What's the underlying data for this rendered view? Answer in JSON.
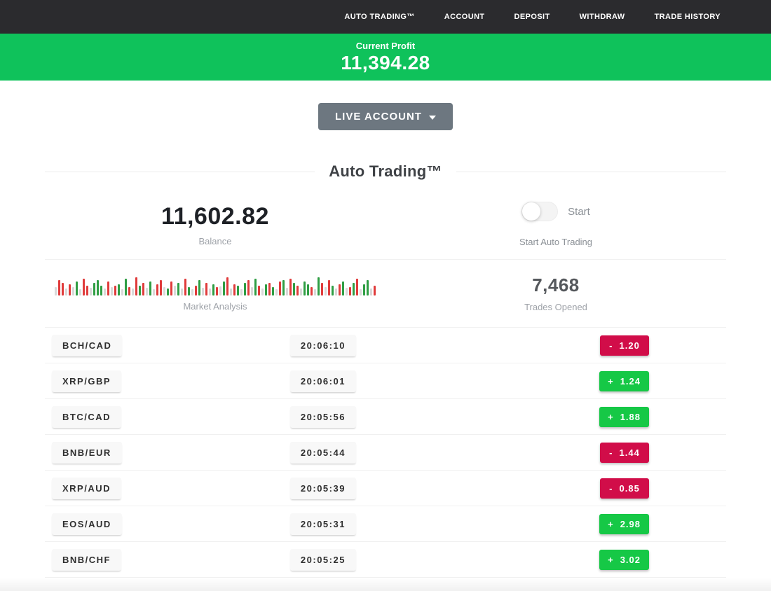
{
  "nav": {
    "items": [
      {
        "label": "AUTO TRADING™"
      },
      {
        "label": "ACCOUNT"
      },
      {
        "label": "DEPOSIT"
      },
      {
        "label": "WITHDRAW"
      },
      {
        "label": "TRADE HISTORY"
      }
    ]
  },
  "profit_banner": {
    "label": "Current Profit",
    "value": "11,394.28",
    "background_color": "#0fc25b"
  },
  "account_selector": {
    "label": "LIVE ACCOUNT",
    "icon": "caret-down-icon",
    "background_color": "#6d7780"
  },
  "section": {
    "title": "Auto Trading™"
  },
  "stats": {
    "balance": {
      "value": "11,602.82",
      "label": "Balance"
    },
    "auto_trading": {
      "toggle_state": "off",
      "toggle_label": "Start",
      "caption": "Start Auto Trading"
    },
    "market_analysis": {
      "label": "Market Analysis",
      "bar_colors": {
        "r": "#e03b3b",
        "g": "#2f9e44",
        "n": "#d9d9d9"
      },
      "bars": [
        [
          "n",
          12
        ],
        [
          "r",
          22
        ],
        [
          "r",
          18
        ],
        [
          "n",
          10
        ],
        [
          "r",
          16
        ],
        [
          "n",
          12
        ],
        [
          "g",
          20
        ],
        [
          "n",
          9
        ],
        [
          "r",
          24
        ],
        [
          "r",
          14
        ],
        [
          "n",
          11
        ],
        [
          "g",
          18
        ],
        [
          "g",
          22
        ],
        [
          "g",
          14
        ],
        [
          "n",
          10
        ],
        [
          "r",
          20
        ],
        [
          "n",
          12
        ],
        [
          "r",
          14
        ],
        [
          "g",
          16
        ],
        [
          "n",
          9
        ],
        [
          "g",
          24
        ],
        [
          "r",
          12
        ],
        [
          "n",
          10
        ],
        [
          "r",
          26
        ],
        [
          "g",
          14
        ],
        [
          "r",
          18
        ],
        [
          "n",
          11
        ],
        [
          "g",
          20
        ],
        [
          "n",
          9
        ],
        [
          "r",
          16
        ],
        [
          "r",
          22
        ],
        [
          "n",
          12
        ],
        [
          "g",
          10
        ],
        [
          "r",
          20
        ],
        [
          "n",
          14
        ],
        [
          "g",
          18
        ],
        [
          "n",
          10
        ],
        [
          "r",
          24
        ],
        [
          "g",
          12
        ],
        [
          "n",
          9
        ],
        [
          "r",
          14
        ],
        [
          "g",
          22
        ],
        [
          "n",
          11
        ],
        [
          "r",
          18
        ],
        [
          "n",
          10
        ],
        [
          "g",
          16
        ],
        [
          "r",
          12
        ],
        [
          "n",
          13
        ],
        [
          "g",
          20
        ],
        [
          "r",
          26
        ],
        [
          "n",
          10
        ],
        [
          "r",
          16
        ],
        [
          "g",
          14
        ],
        [
          "n",
          9
        ],
        [
          "g",
          18
        ],
        [
          "r",
          22
        ],
        [
          "n",
          12
        ],
        [
          "g",
          24
        ],
        [
          "r",
          14
        ],
        [
          "n",
          10
        ],
        [
          "g",
          16
        ],
        [
          "r",
          18
        ],
        [
          "g",
          12
        ],
        [
          "n",
          9
        ],
        [
          "r",
          20
        ],
        [
          "g",
          22
        ],
        [
          "n",
          11
        ],
        [
          "r",
          24
        ],
        [
          "g",
          18
        ],
        [
          "r",
          14
        ],
        [
          "n",
          10
        ],
        [
          "g",
          20
        ],
        [
          "g",
          16
        ],
        [
          "r",
          12
        ],
        [
          "n",
          9
        ],
        [
          "g",
          26
        ],
        [
          "r",
          18
        ],
        [
          "n",
          12
        ],
        [
          "r",
          22
        ],
        [
          "g",
          14
        ],
        [
          "n",
          10
        ],
        [
          "r",
          16
        ],
        [
          "g",
          20
        ],
        [
          "n",
          11
        ],
        [
          "r",
          12
        ],
        [
          "g",
          18
        ],
        [
          "r",
          24
        ],
        [
          "n",
          9
        ],
        [
          "g",
          16
        ],
        [
          "g",
          22
        ],
        [
          "n",
          10
        ],
        [
          "r",
          14
        ]
      ]
    },
    "trades_opened": {
      "value": "7,468",
      "label": "Trades Opened"
    }
  },
  "trades": {
    "rows": [
      {
        "pair": "BCH/CAD",
        "time": "20:06:10",
        "sign": "-",
        "value": "1.20",
        "direction": "loss"
      },
      {
        "pair": "XRP/GBP",
        "time": "20:06:01",
        "sign": "+",
        "value": "1.24",
        "direction": "gain"
      },
      {
        "pair": "BTC/CAD",
        "time": "20:05:56",
        "sign": "+",
        "value": "1.88",
        "direction": "gain"
      },
      {
        "pair": "BNB/EUR",
        "time": "20:05:44",
        "sign": "-",
        "value": "1.44",
        "direction": "loss"
      },
      {
        "pair": "XRP/AUD",
        "time": "20:05:39",
        "sign": "-",
        "value": "0.85",
        "direction": "loss"
      },
      {
        "pair": "EOS/AUD",
        "time": "20:05:31",
        "sign": "+",
        "value": "2.98",
        "direction": "gain"
      },
      {
        "pair": "BNB/CHF",
        "time": "20:05:25",
        "sign": "+",
        "value": "3.02",
        "direction": "gain"
      }
    ]
  },
  "colors": {
    "nav_background": "#2b2b2e",
    "positive_badge": "#16c846",
    "negative_badge": "#d10d49"
  }
}
